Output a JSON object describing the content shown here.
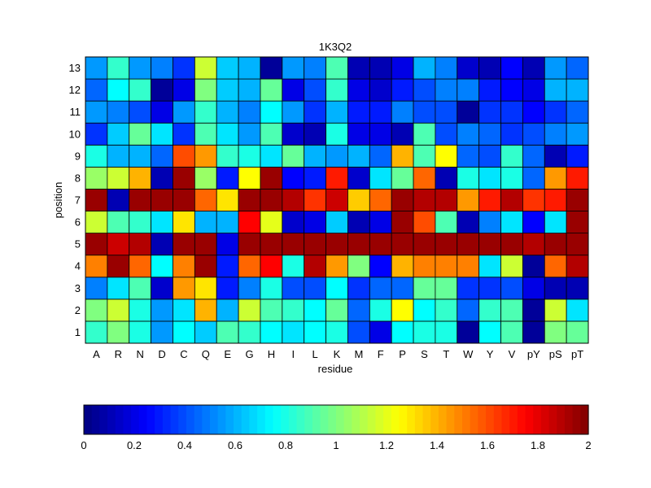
{
  "chart_data": {
    "type": "heatmap",
    "title": "1K3Q2",
    "xlabel": "residue",
    "ylabel": "position",
    "x_categories": [
      "A",
      "R",
      "N",
      "D",
      "C",
      "Q",
      "E",
      "G",
      "H",
      "I",
      "L",
      "K",
      "M",
      "F",
      "P",
      "S",
      "T",
      "W",
      "Y",
      "V",
      "pY",
      "pS",
      "pT"
    ],
    "y_categories": [
      "1",
      "2",
      "3",
      "4",
      "5",
      "6",
      "7",
      "8",
      "9",
      "10",
      "11",
      "12",
      "13"
    ],
    "y_order": "bottom-to-top",
    "values": [
      [
        0.85,
        1.0,
        0.8,
        0.55,
        0.75,
        0.65,
        0.9,
        0.85,
        0.75,
        0.7,
        0.75,
        0.8,
        0.4,
        0.2,
        0.75,
        0.8,
        0.8,
        0.05,
        0.75,
        0.9,
        0.05,
        1.0,
        0.95
      ],
      [
        1.0,
        1.15,
        0.8,
        0.55,
        0.7,
        1.4,
        0.6,
        1.15,
        0.9,
        0.85,
        0.75,
        0.95,
        0.45,
        0.8,
        1.25,
        0.75,
        0.85,
        0.45,
        0.85,
        0.9,
        0.05,
        1.15,
        0.7
      ],
      [
        0.5,
        0.7,
        0.9,
        0.15,
        1.45,
        1.3,
        0.3,
        0.5,
        0.8,
        0.4,
        0.4,
        0.75,
        0.35,
        0.45,
        0.45,
        0.95,
        0.95,
        0.35,
        0.35,
        0.4,
        0.2,
        0.1,
        0.1
      ],
      [
        1.5,
        1.95,
        1.55,
        0.75,
        1.5,
        1.95,
        0.3,
        1.55,
        1.75,
        0.8,
        1.9,
        1.45,
        1.0,
        0.25,
        1.4,
        1.5,
        1.5,
        1.5,
        0.7,
        1.15,
        0.05,
        1.55,
        1.9
      ],
      [
        1.95,
        1.85,
        1.9,
        0.1,
        1.95,
        1.95,
        0.2,
        1.95,
        1.95,
        1.95,
        1.95,
        1.95,
        1.95,
        1.95,
        1.95,
        1.95,
        1.95,
        1.95,
        1.95,
        1.95,
        1.9,
        1.95,
        1.95
      ],
      [
        1.15,
        0.9,
        0.85,
        0.7,
        1.3,
        0.6,
        0.6,
        1.75,
        1.2,
        0.15,
        0.2,
        0.65,
        0.1,
        0.2,
        1.95,
        1.6,
        0.9,
        0.1,
        0.5,
        0.7,
        0.25,
        0.7,
        1.95
      ],
      [
        1.95,
        0.1,
        1.95,
        1.95,
        1.95,
        1.55,
        1.3,
        1.95,
        1.95,
        1.9,
        1.65,
        1.85,
        1.35,
        1.55,
        1.95,
        1.9,
        1.9,
        1.45,
        1.7,
        1.9,
        1.65,
        1.7,
        1.95
      ],
      [
        1.05,
        1.15,
        1.4,
        0.1,
        1.95,
        1.05,
        0.3,
        1.25,
        1.95,
        0.25,
        0.3,
        1.7,
        0.15,
        0.7,
        0.95,
        1.55,
        0.1,
        0.8,
        0.7,
        0.8,
        0.45,
        1.45,
        1.7
      ],
      [
        0.8,
        0.6,
        0.6,
        0.45,
        1.6,
        1.45,
        0.85,
        0.8,
        0.7,
        0.95,
        0.6,
        0.55,
        0.6,
        0.45,
        1.4,
        0.9,
        1.25,
        0.45,
        0.4,
        0.85,
        0.45,
        0.1,
        0.3
      ],
      [
        0.35,
        0.65,
        0.95,
        0.7,
        0.35,
        0.9,
        0.7,
        0.55,
        0.9,
        0.15,
        0.1,
        0.8,
        0.2,
        0.2,
        0.1,
        0.9,
        0.4,
        0.5,
        0.45,
        0.35,
        0.4,
        0.5,
        0.55
      ],
      [
        0.55,
        0.5,
        0.4,
        0.2,
        0.55,
        0.85,
        0.6,
        0.5,
        0.75,
        0.55,
        0.35,
        0.6,
        0.3,
        0.3,
        0.5,
        0.4,
        0.4,
        0.05,
        0.35,
        0.35,
        0.25,
        0.35,
        0.45
      ],
      [
        0.45,
        0.75,
        0.85,
        0.05,
        0.2,
        1.0,
        0.65,
        0.6,
        0.95,
        0.2,
        0.4,
        0.85,
        0.2,
        0.15,
        0.3,
        0.4,
        0.5,
        0.5,
        0.3,
        0.25,
        0.2,
        0.6,
        0.6
      ],
      [
        0.55,
        0.85,
        0.55,
        0.5,
        0.35,
        1.15,
        0.65,
        0.6,
        0.05,
        0.55,
        0.5,
        0.9,
        0.1,
        0.1,
        0.2,
        0.6,
        0.5,
        0.15,
        0.1,
        0.25,
        0.1,
        0.55,
        0.45
      ]
    ],
    "colormap": "jet",
    "colorbar": {
      "range": [
        0,
        2
      ],
      "ticks": [
        "0",
        "0.2",
        "0.4",
        "0.6",
        "0.8",
        "1",
        "1.2",
        "1.4",
        "1.6",
        "1.8",
        "2"
      ],
      "orientation": "horizontal",
      "placement": "bottom"
    },
    "grid": true
  }
}
